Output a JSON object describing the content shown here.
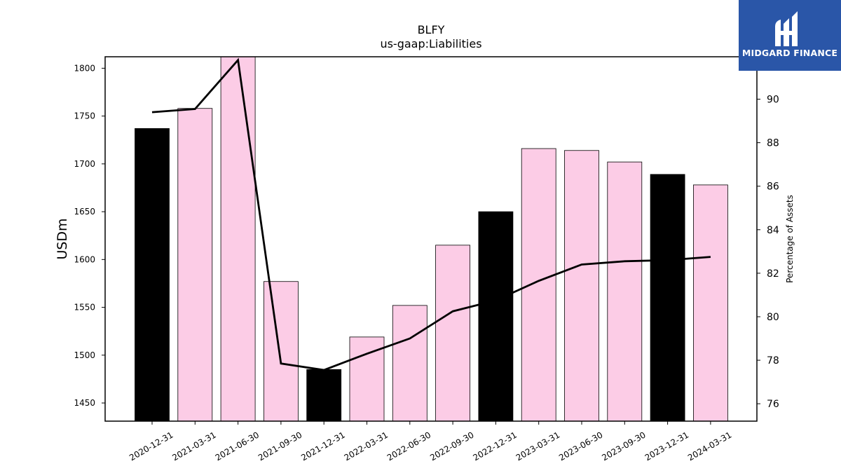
{
  "chart_data": {
    "type": "bar",
    "title": "BLFY",
    "subtitle": "us-gaap:Liabilities",
    "ylabel": "USDm",
    "y2label": "Percentage of Assets",
    "categories": [
      "2020-12-31",
      "2021-03-31",
      "2021-06-30",
      "2021-09-30",
      "2021-12-31",
      "2022-03-31",
      "2022-06-30",
      "2022-09-30",
      "2022-12-31",
      "2023-03-31",
      "2023-06-30",
      "2023-09-30",
      "2023-12-31",
      "2024-03-31"
    ],
    "series": [
      {
        "axis": "left",
        "type": "bar",
        "values": [
          1737,
          1758,
          1813,
          1577,
          1485,
          1519,
          1552,
          1615,
          1650,
          1716,
          1714,
          1702,
          1689,
          1678
        ],
        "colors": [
          "#000000",
          "#fccce6",
          "#fccce6",
          "#fccce6",
          "#000000",
          "#fccce6",
          "#fccce6",
          "#fccce6",
          "#000000",
          "#fccce6",
          "#fccce6",
          "#fccce6",
          "#000000",
          "#fccce6"
        ]
      },
      {
        "axis": "right",
        "type": "line",
        "color": "#000000",
        "values": [
          89.4,
          89.55,
          91.8,
          77.85,
          77.55,
          78.3,
          79.0,
          80.25,
          80.75,
          81.65,
          82.4,
          82.55,
          82.6,
          82.75
        ]
      }
    ],
    "ylim": [
      1431,
      1812
    ],
    "yticks": [
      1450,
      1500,
      1550,
      1600,
      1650,
      1700,
      1750,
      1800
    ],
    "y2lim": [
      75.2,
      91.95
    ],
    "y2ticks": [
      76,
      78,
      80,
      82,
      84,
      86,
      88,
      90
    ]
  },
  "logo": {
    "text": "MIDGARD FINANCE"
  }
}
